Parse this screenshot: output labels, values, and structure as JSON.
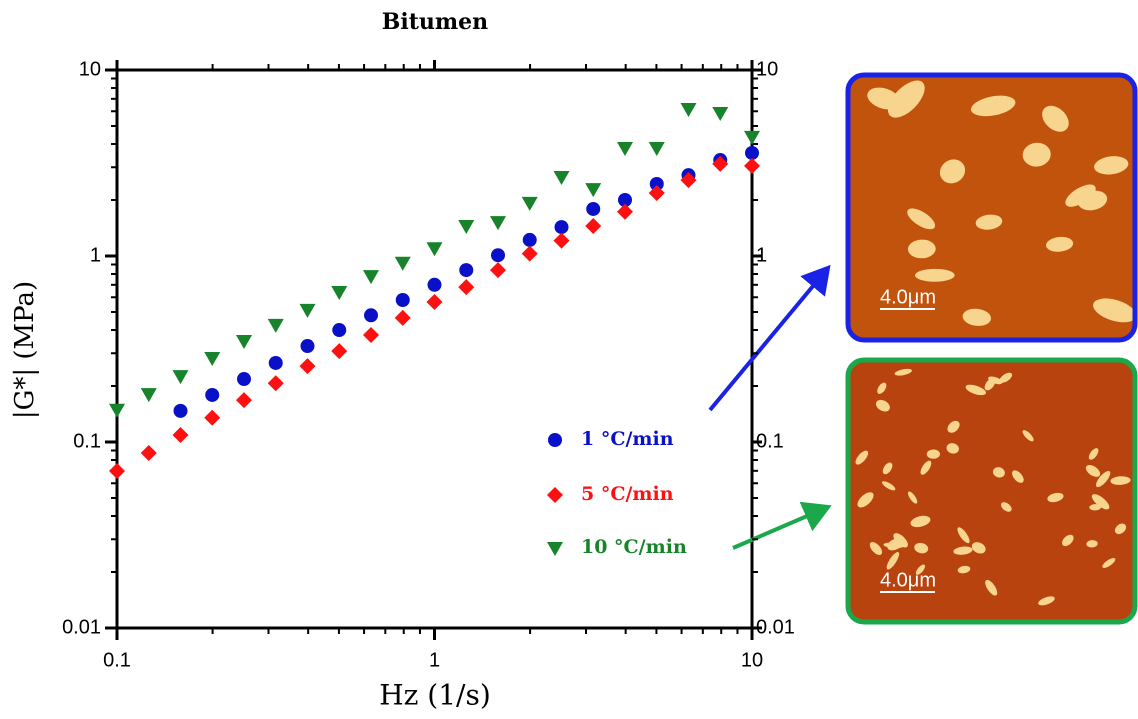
{
  "chart_data": {
    "type": "scatter",
    "title": "Bitumen",
    "xlabel": "Hz (1/s)",
    "ylabel": "|G*| (MPa)",
    "xscale": "log",
    "yscale": "log",
    "minor_ticks": true,
    "legend": "lower right",
    "xlim": [
      0.1,
      10
    ],
    "xticks": [
      0.1,
      1,
      10
    ],
    "ylim": [
      0.01,
      10
    ],
    "yticks": [
      0.01,
      0.1,
      1,
      10
    ],
    "y2lim": [
      0.01,
      10
    ],
    "y2ticks": [
      0.01,
      0.1,
      1,
      10
    ],
    "x": [
      0.1,
      0.1259,
      0.1585,
      0.1995,
      0.2512,
      0.3162,
      0.3981,
      0.5012,
      0.631,
      0.7943,
      1,
      1.259,
      1.585,
      1.995,
      2.512,
      3.162,
      3.981,
      5.012,
      6.31,
      7.943,
      10
    ],
    "series": [
      {
        "name": "1 °C/min",
        "color": "#0a10c8",
        "marker": "circle",
        "values": [
          null,
          null,
          0.147,
          0.179,
          0.218,
          0.266,
          0.328,
          0.4,
          0.48,
          0.58,
          0.7,
          0.84,
          1.01,
          1.22,
          1.43,
          1.79,
          2.0,
          2.44,
          2.72,
          3.28,
          3.58
        ]
      },
      {
        "name": "5 °C/min",
        "color": "#ff1010",
        "marker": "diamond",
        "values": [
          0.0698,
          0.0873,
          0.109,
          0.135,
          0.168,
          0.207,
          0.256,
          0.308,
          0.376,
          0.465,
          0.566,
          0.68,
          0.84,
          1.03,
          1.21,
          1.45,
          1.73,
          2.18,
          2.56,
          3.13,
          3.05
        ]
      },
      {
        "name": "10 °C/min",
        "color": "#17832a",
        "marker": "triangle-down",
        "values": [
          0.149,
          0.181,
          0.226,
          0.283,
          0.349,
          0.426,
          0.513,
          0.64,
          0.78,
          0.92,
          1.1,
          1.45,
          1.52,
          1.93,
          2.66,
          2.29,
          3.81,
          3.81,
          6.17,
          5.87,
          4.37
        ]
      }
    ]
  },
  "images": [
    {
      "scale_label": "4.0μm",
      "border": "#1a22e6"
    },
    {
      "scale_label": "4.0μm",
      "border": "#1aa84a"
    }
  ]
}
